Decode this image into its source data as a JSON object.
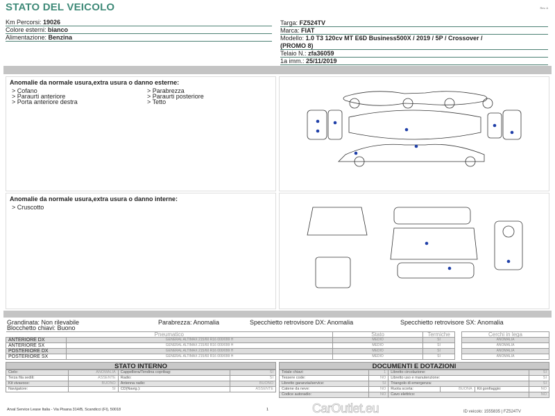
{
  "title": "STATO DEL VEICOLO",
  "rev": "Rev. A",
  "left_info": [
    {
      "label": "Km Percorsi: ",
      "value": "19026"
    },
    {
      "label": "Colore esterni: ",
      "value": "bianco"
    },
    {
      "label": "Alimentazione: ",
      "value": "Benzina"
    }
  ],
  "right_info": [
    {
      "label": "Targa: ",
      "value": "FZ524TV"
    },
    {
      "label": "Marca: ",
      "value": "FIAT"
    },
    {
      "label": "Modello: ",
      "value": "1.0 T3 120cv MT E6D Business500X / 2019 / 5P / Crossover /"
    },
    {
      "label": "",
      "value": "(PROMO 8)"
    },
    {
      "label": "Telaio N.: ",
      "value": "zfa36059"
    },
    {
      "label": "1a imm.: ",
      "value": "25/11/2019"
    }
  ],
  "exterior": {
    "heading": "Anomalie da normale usura,extra usura o danno esterne:",
    "items": [
      "> Cofano",
      "> Parabrezza",
      "> Paraurti anteriore",
      "> Paraurti posteriore",
      "> Porta anteriore destra",
      "> Tetto"
    ]
  },
  "interior": {
    "heading": "Anomalie da normale usura,extra usura o danno interne:",
    "items": [
      "> Cruscotto"
    ]
  },
  "status_line": {
    "grandinata": "Grandinata: Non rilevabile",
    "blocchetto": "Blocchetto chiavi: Buono",
    "parabrezza": "Parabrezza: Anomalia",
    "spec_dx": "Specchietto retrovisore DX: Anomalia",
    "spec_sx": "Specchietto retrovisore SX: Anomalia"
  },
  "tires": {
    "headers": [
      "Pneumatico",
      "Stato",
      "Termiche"
    ],
    "rows": [
      {
        "pos": "ANTERIORE DX",
        "tire": "GENERAL ALTIMAX 215/60 R16 000/099 H",
        "stato": "MEDIO",
        "termiche": "SI"
      },
      {
        "pos": "ANTERIORE SX",
        "tire": "GENERAL ALTIMAX 215/60 R16 000/099 H",
        "stato": "MEDIO",
        "termiche": "SI"
      },
      {
        "pos": "POSTERIORE DX",
        "tire": "GENERAL ALTIMAX 215/60 R16 000/099 H",
        "stato": "MEDIO",
        "termiche": "SI"
      },
      {
        "pos": "POSTERIORE SX",
        "tire": "GENERAL ALTIMAX 215/60 R16 000/099 H",
        "stato": "MEDIO",
        "termiche": "SI"
      }
    ],
    "cerchi_header": "Cerchi in lega",
    "cerchi": [
      "ANOMALIA",
      "ANOMALIA",
      "ANOMALIA",
      "ANOMALIA"
    ]
  },
  "stato_interno": {
    "title": "STATO INTERNO",
    "rows": [
      [
        "Cielo:",
        "ANOMALIA",
        "Cappelliera/Tendina copribag:",
        "SI"
      ],
      [
        "Terza fila sedili:",
        "ASSENTE",
        "Radio:",
        "SI"
      ],
      [
        "Kit vivavoce:",
        "BUONO",
        "Antenna radio:",
        "BUONO"
      ],
      [
        "Navigatore:",
        "SI",
        "CD(Navig.):",
        "ASSENTE"
      ]
    ]
  },
  "documenti": {
    "title": "DOCUMENTI E DOTAZIONI",
    "rows": [
      [
        "Totale chiavi:",
        "1",
        "Libretto circolazione:",
        "SI"
      ],
      [
        "Tessere code:",
        "NO",
        "Libretto uso e manutenzione:",
        "SI"
      ],
      [
        "Libretto garanzia/service:",
        "SI",
        "Triangolo di emergenza:",
        "SI"
      ],
      [
        "Catene da neve:",
        "NO",
        "Ruota scorta:",
        "BUONA",
        "Kit gonfiaggio:",
        "NO"
      ],
      [
        "Codice autoradio:",
        "NO",
        "Cavo elettrico:",
        "NO"
      ]
    ]
  },
  "footer": "Arval Service Lease Italia - Via Pisana 314/B, Scandicci (FI), 50018",
  "page": "1",
  "watermark": "CarOutlet.eu",
  "doc_id": "ID veicolo: 1555835 | FZ524TV",
  "colors": {
    "title": "#3f8a78",
    "bar": "#c4c4c4",
    "damage_dot": "#1f3fa8"
  }
}
